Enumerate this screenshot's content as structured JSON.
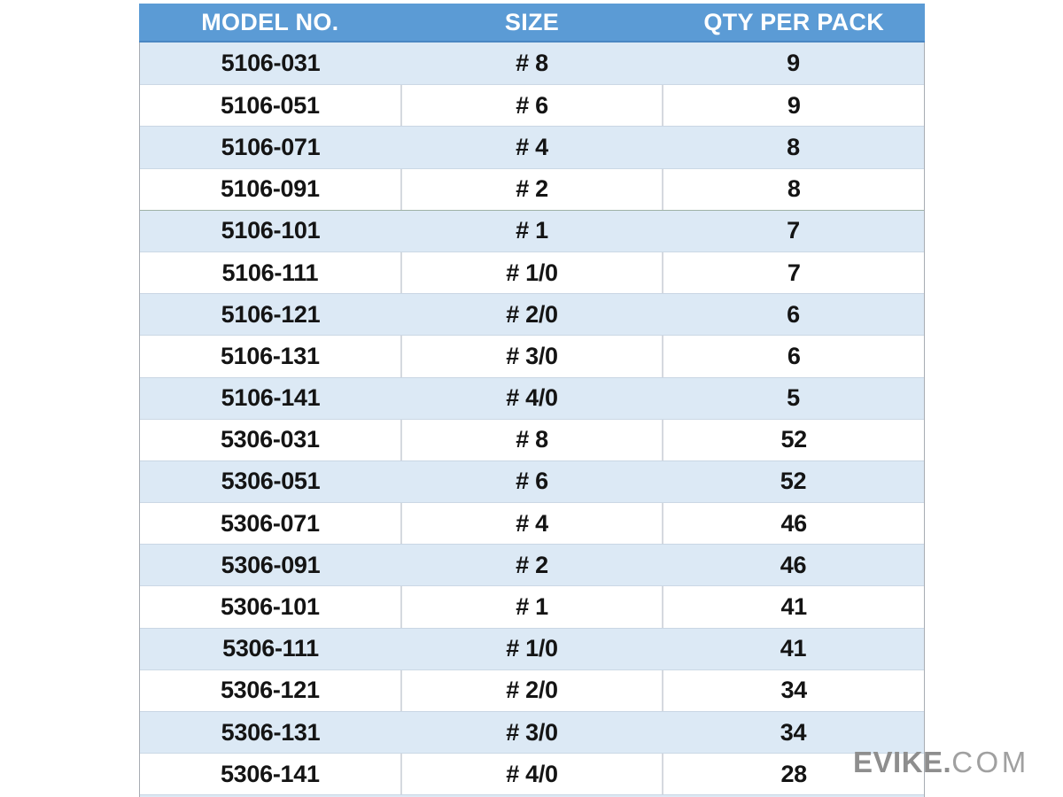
{
  "table": {
    "columns": [
      "MODEL NO.",
      "SIZE",
      "QTY PER PACK"
    ],
    "rows": [
      [
        "5106-031",
        "# 8",
        "9"
      ],
      [
        "5106-051",
        "# 6",
        "9"
      ],
      [
        "5106-071",
        "# 4",
        "8"
      ],
      [
        "5106-091",
        "# 2",
        "8"
      ],
      [
        "5106-101",
        "# 1",
        "7"
      ],
      [
        "5106-111",
        "# 1/0",
        "7"
      ],
      [
        "5106-121",
        "# 2/0",
        "6"
      ],
      [
        "5106-131",
        "# 3/0",
        "6"
      ],
      [
        "5106-141",
        "# 4/0",
        "5"
      ],
      [
        "5306-031",
        "# 8",
        "52"
      ],
      [
        "5306-051",
        "# 6",
        "52"
      ],
      [
        "5306-071",
        "# 4",
        "46"
      ],
      [
        "5306-091",
        "# 2",
        "46"
      ],
      [
        "5306-101",
        "# 1",
        "41"
      ],
      [
        "5306-111",
        "# 1/0",
        "41"
      ],
      [
        "5306-121",
        "# 2/0",
        "34"
      ],
      [
        "5306-131",
        "# 3/0",
        "34"
      ],
      [
        "5306-141",
        "# 4/0",
        "28"
      ]
    ]
  },
  "watermark": {
    "bold": "EVIKE.",
    "light": "COM"
  },
  "colors": {
    "header_bg": "#5B9BD5",
    "header_text": "#FFFFFF",
    "row_alt_bg": "#DCE9F5",
    "row_bg": "#FFFFFF",
    "body_text": "#141414",
    "watermark_gray": "#8E8E8E"
  }
}
